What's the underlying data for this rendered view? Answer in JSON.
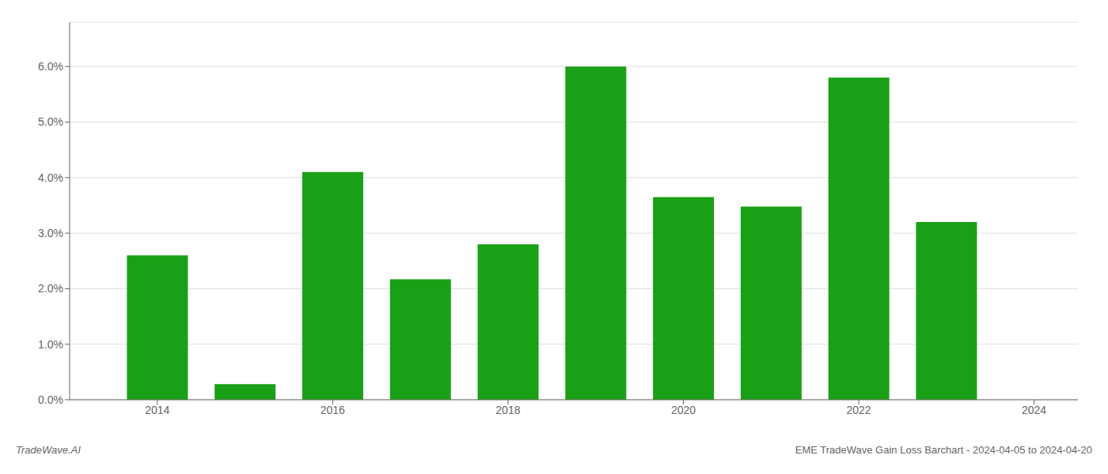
{
  "chart_data": {
    "type": "bar",
    "x": [
      2014,
      2015,
      2016,
      2017,
      2018,
      2019,
      2020,
      2021,
      2022,
      2023
    ],
    "values": [
      0.026,
      0.0028,
      0.041,
      0.0217,
      0.028,
      0.06,
      0.0365,
      0.0348,
      0.058,
      0.032
    ],
    "color": "#1aa016",
    "xlim": [
      2013.0,
      2024.5
    ],
    "xticks": [
      2014,
      2016,
      2018,
      2020,
      2022,
      2024
    ],
    "ylim": [
      0,
      0.068
    ],
    "yticks": [
      {
        "value": 0.0,
        "label": "0.0%"
      },
      {
        "value": 0.01,
        "label": "1.0%"
      },
      {
        "value": 0.02,
        "label": "2.0%"
      },
      {
        "value": 0.03,
        "label": "3.0%"
      },
      {
        "value": 0.04,
        "label": "4.0%"
      },
      {
        "value": 0.05,
        "label": "5.0%"
      },
      {
        "value": 0.06,
        "label": "6.0%"
      }
    ],
    "grid": true,
    "annotations": [
      "TradeWave.AI",
      "EME TradeWave Gain Loss Barchart - 2024-04-05 to 2024-04-20"
    ]
  }
}
